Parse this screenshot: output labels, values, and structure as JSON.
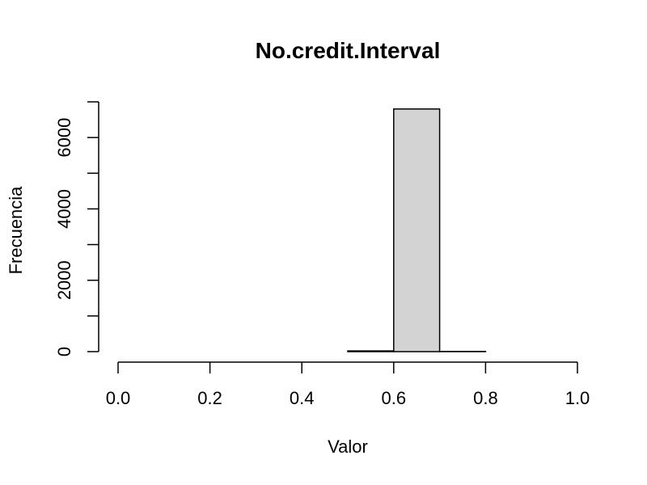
{
  "chart_data": {
    "type": "bar",
    "title": "No.credit.Interval",
    "xlabel": "Valor",
    "ylabel": "Frecuencia",
    "bins": [
      {
        "x0": 0.0,
        "x1": 0.1,
        "count": 0
      },
      {
        "x0": 0.1,
        "x1": 0.2,
        "count": 0
      },
      {
        "x0": 0.2,
        "x1": 0.3,
        "count": 0
      },
      {
        "x0": 0.3,
        "x1": 0.4,
        "count": 0
      },
      {
        "x0": 0.4,
        "x1": 0.5,
        "count": 0
      },
      {
        "x0": 0.5,
        "x1": 0.6,
        "count": 20
      },
      {
        "x0": 0.6,
        "x1": 0.7,
        "count": 6800
      },
      {
        "x0": 0.7,
        "x1": 0.8,
        "count": 5
      },
      {
        "x0": 0.8,
        "x1": 0.9,
        "count": 0
      },
      {
        "x0": 0.9,
        "x1": 1.0,
        "count": 0
      }
    ],
    "xlim": [
      0.0,
      1.0
    ],
    "ylim": [
      0,
      7000
    ],
    "xticks": [
      "0.0",
      "0.2",
      "0.4",
      "0.6",
      "0.8",
      "1.0"
    ],
    "xtick_values": [
      0.0,
      0.2,
      0.4,
      0.6,
      0.8,
      1.0
    ],
    "yticks": [
      "0",
      "2000",
      "4000",
      "6000"
    ],
    "ytick_values": [
      0,
      2000,
      4000,
      6000
    ],
    "ytick_minor_values": [
      1000,
      3000,
      5000,
      7000
    ],
    "bar_fill": "#d3d3d3",
    "grid": false
  }
}
